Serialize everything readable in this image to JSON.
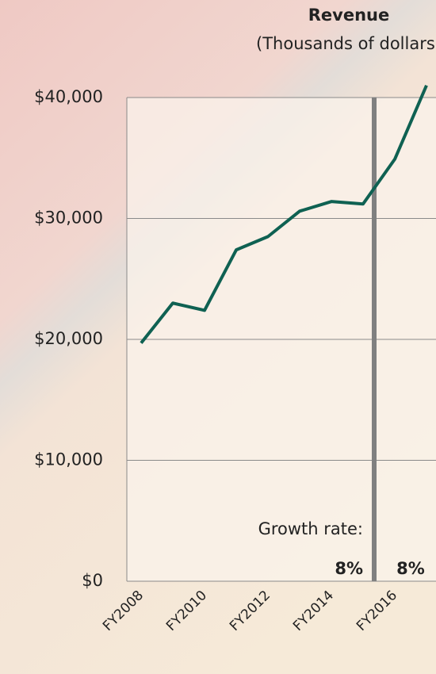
{
  "chart_data": {
    "type": "line",
    "title": "Revenue",
    "subtitle": "(Thousands of dollars)",
    "categories": [
      "FY2008",
      null,
      "FY2010",
      null,
      "FY2012",
      null,
      "FY2014",
      null,
      "FY2016",
      null
    ],
    "series": [
      {
        "name": "Revenue",
        "color": "#0f6152",
        "values": [
          19700,
          23000,
          22400,
          27400,
          28500,
          30600,
          31400,
          31200,
          34900,
          41000
        ]
      }
    ],
    "ylim": [
      0,
      40000
    ],
    "yticks": [
      {
        "value": 0,
        "label": "$0"
      },
      {
        "value": 10000,
        "label": "$10,000"
      },
      {
        "value": 20000,
        "label": "$20,000"
      },
      {
        "value": 30000,
        "label": "$30,000"
      },
      {
        "value": 40000,
        "label": "$40,000"
      }
    ],
    "grid": true,
    "annotations": [
      "Growth rate:",
      "8%",
      "8%"
    ]
  }
}
